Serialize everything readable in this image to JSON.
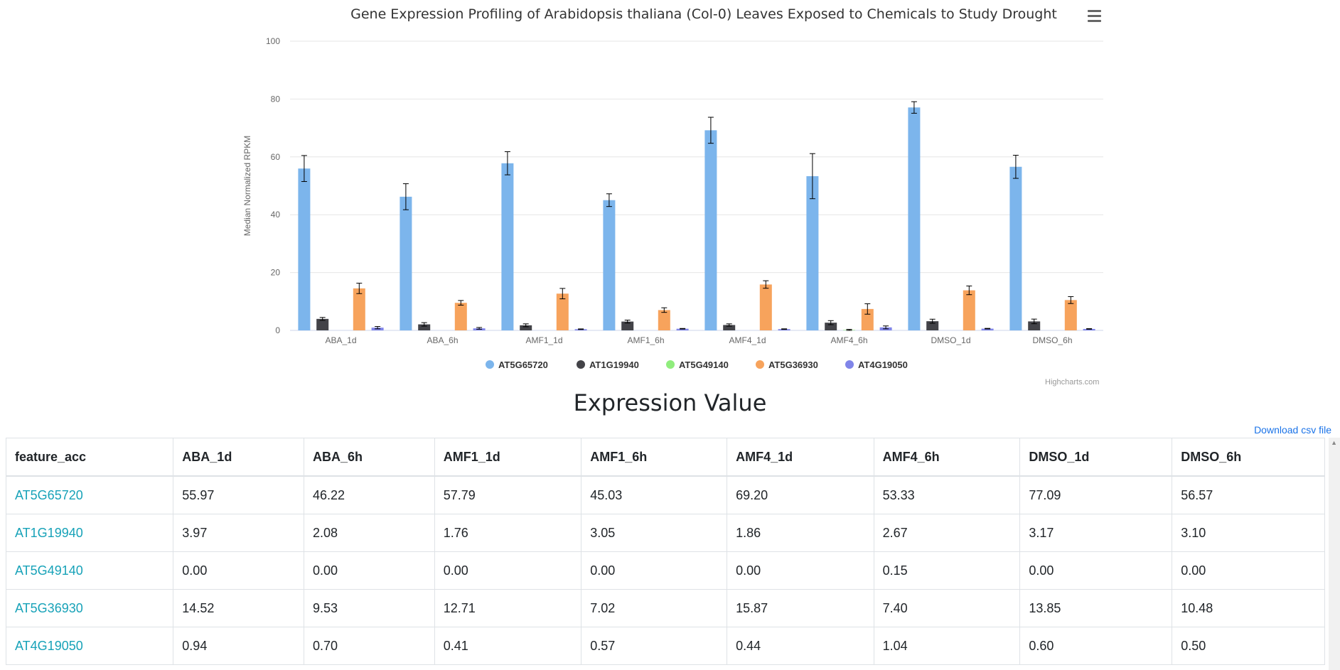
{
  "chart_data": {
    "type": "bar",
    "title": "Gene Expression Profiling of Arabidopsis thaliana (Col-0) Leaves Exposed to Chemicals to Study Drought",
    "ylabel": "Median Normalized RPKM",
    "xlabel": "",
    "ylim": [
      0,
      100
    ],
    "yticks": [
      0,
      20,
      40,
      60,
      80,
      100
    ],
    "grid": true,
    "legend": "bottom",
    "categories": [
      "ABA_1d",
      "ABA_6h",
      "AMF1_1d",
      "AMF1_6h",
      "AMF4_1d",
      "AMF4_6h",
      "DMSO_1d",
      "DMSO_6h"
    ],
    "series": [
      {
        "name": "AT5G65720",
        "color": "#7cb5ec",
        "values": [
          55.97,
          46.22,
          57.79,
          45.03,
          69.2,
          53.33,
          77.09,
          56.57
        ],
        "errors": [
          4.5,
          4.5,
          4.0,
          2.2,
          4.5,
          7.8,
          2.0,
          4.0
        ]
      },
      {
        "name": "AT1G19940",
        "color": "#434348",
        "values": [
          3.97,
          2.08,
          1.76,
          3.05,
          1.86,
          2.67,
          3.17,
          3.1
        ],
        "errors": [
          0.5,
          0.6,
          0.5,
          0.5,
          0.4,
          0.7,
          0.7,
          0.8
        ]
      },
      {
        "name": "AT5G49140",
        "color": "#90ed7d",
        "values": [
          0.0,
          0.0,
          0.0,
          0.0,
          0.0,
          0.15,
          0.0,
          0.0
        ],
        "errors": [
          0,
          0,
          0,
          0,
          0,
          0.2,
          0,
          0
        ]
      },
      {
        "name": "AT5G36930",
        "color": "#f7a35c",
        "values": [
          14.52,
          9.53,
          12.71,
          7.02,
          15.87,
          7.4,
          13.85,
          10.48
        ],
        "errors": [
          1.8,
          0.8,
          1.8,
          0.8,
          1.3,
          1.8,
          1.5,
          1.2
        ]
      },
      {
        "name": "AT4G19050",
        "color": "#8085e9",
        "values": [
          0.94,
          0.7,
          0.41,
          0.57,
          0.44,
          1.04,
          0.6,
          0.5
        ],
        "errors": [
          0.4,
          0.3,
          0.1,
          0.1,
          0.1,
          0.5,
          0.1,
          0.1
        ]
      }
    ]
  },
  "credits": "Highcharts.com",
  "section_title": "Expression Value",
  "download_label": "Download csv file",
  "table": {
    "headers": [
      "feature_acc",
      "ABA_1d",
      "ABA_6h",
      "AMF1_1d",
      "AMF1_6h",
      "AMF4_1d",
      "AMF4_6h",
      "DMSO_1d",
      "DMSO_6h"
    ],
    "rows": [
      [
        "AT5G65720",
        "55.97",
        "46.22",
        "57.79",
        "45.03",
        "69.20",
        "53.33",
        "77.09",
        "56.57"
      ],
      [
        "AT1G19940",
        "3.97",
        "2.08",
        "1.76",
        "3.05",
        "1.86",
        "2.67",
        "3.17",
        "3.10"
      ],
      [
        "AT5G49140",
        "0.00",
        "0.00",
        "0.00",
        "0.00",
        "0.00",
        "0.15",
        "0.00",
        "0.00"
      ],
      [
        "AT5G36930",
        "14.52",
        "9.53",
        "12.71",
        "7.02",
        "15.87",
        "7.40",
        "13.85",
        "10.48"
      ],
      [
        "AT4G19050",
        "0.94",
        "0.70",
        "0.41",
        "0.57",
        "0.44",
        "1.04",
        "0.60",
        "0.50"
      ]
    ]
  }
}
